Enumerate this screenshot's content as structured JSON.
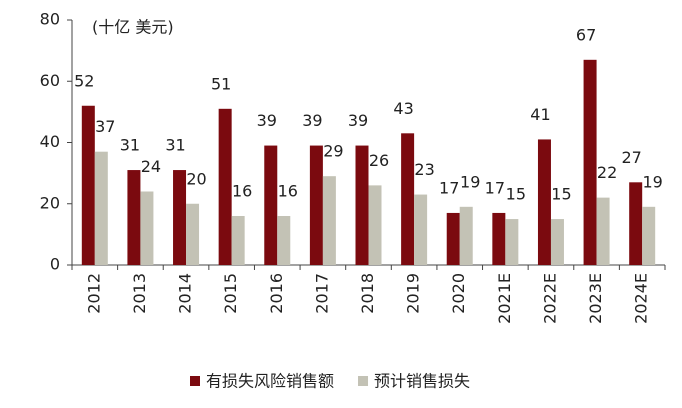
{
  "chart_data": {
    "type": "bar",
    "annotation": "(十亿 美元)",
    "categories": [
      "2012",
      "2013",
      "2014",
      "2015",
      "2016",
      "2017",
      "2018",
      "2019",
      "2020",
      "2021E",
      "2022E",
      "2023E",
      "2024E"
    ],
    "series": [
      {
        "name": "有损失风险销售额",
        "color": "#7b0a0f",
        "values": [
          52,
          31,
          31,
          51,
          39,
          39,
          39,
          43,
          17,
          17,
          41,
          67,
          27
        ]
      },
      {
        "name": "预计销售损失",
        "color": "#c3c2b5",
        "values": [
          37,
          24,
          20,
          16,
          16,
          29,
          26,
          23,
          19,
          15,
          15,
          22,
          19
        ]
      }
    ],
    "ylim": [
      0,
      80
    ],
    "yticks": [
      0,
      20,
      40,
      60,
      80
    ],
    "grid": false,
    "legend": "bottom"
  }
}
